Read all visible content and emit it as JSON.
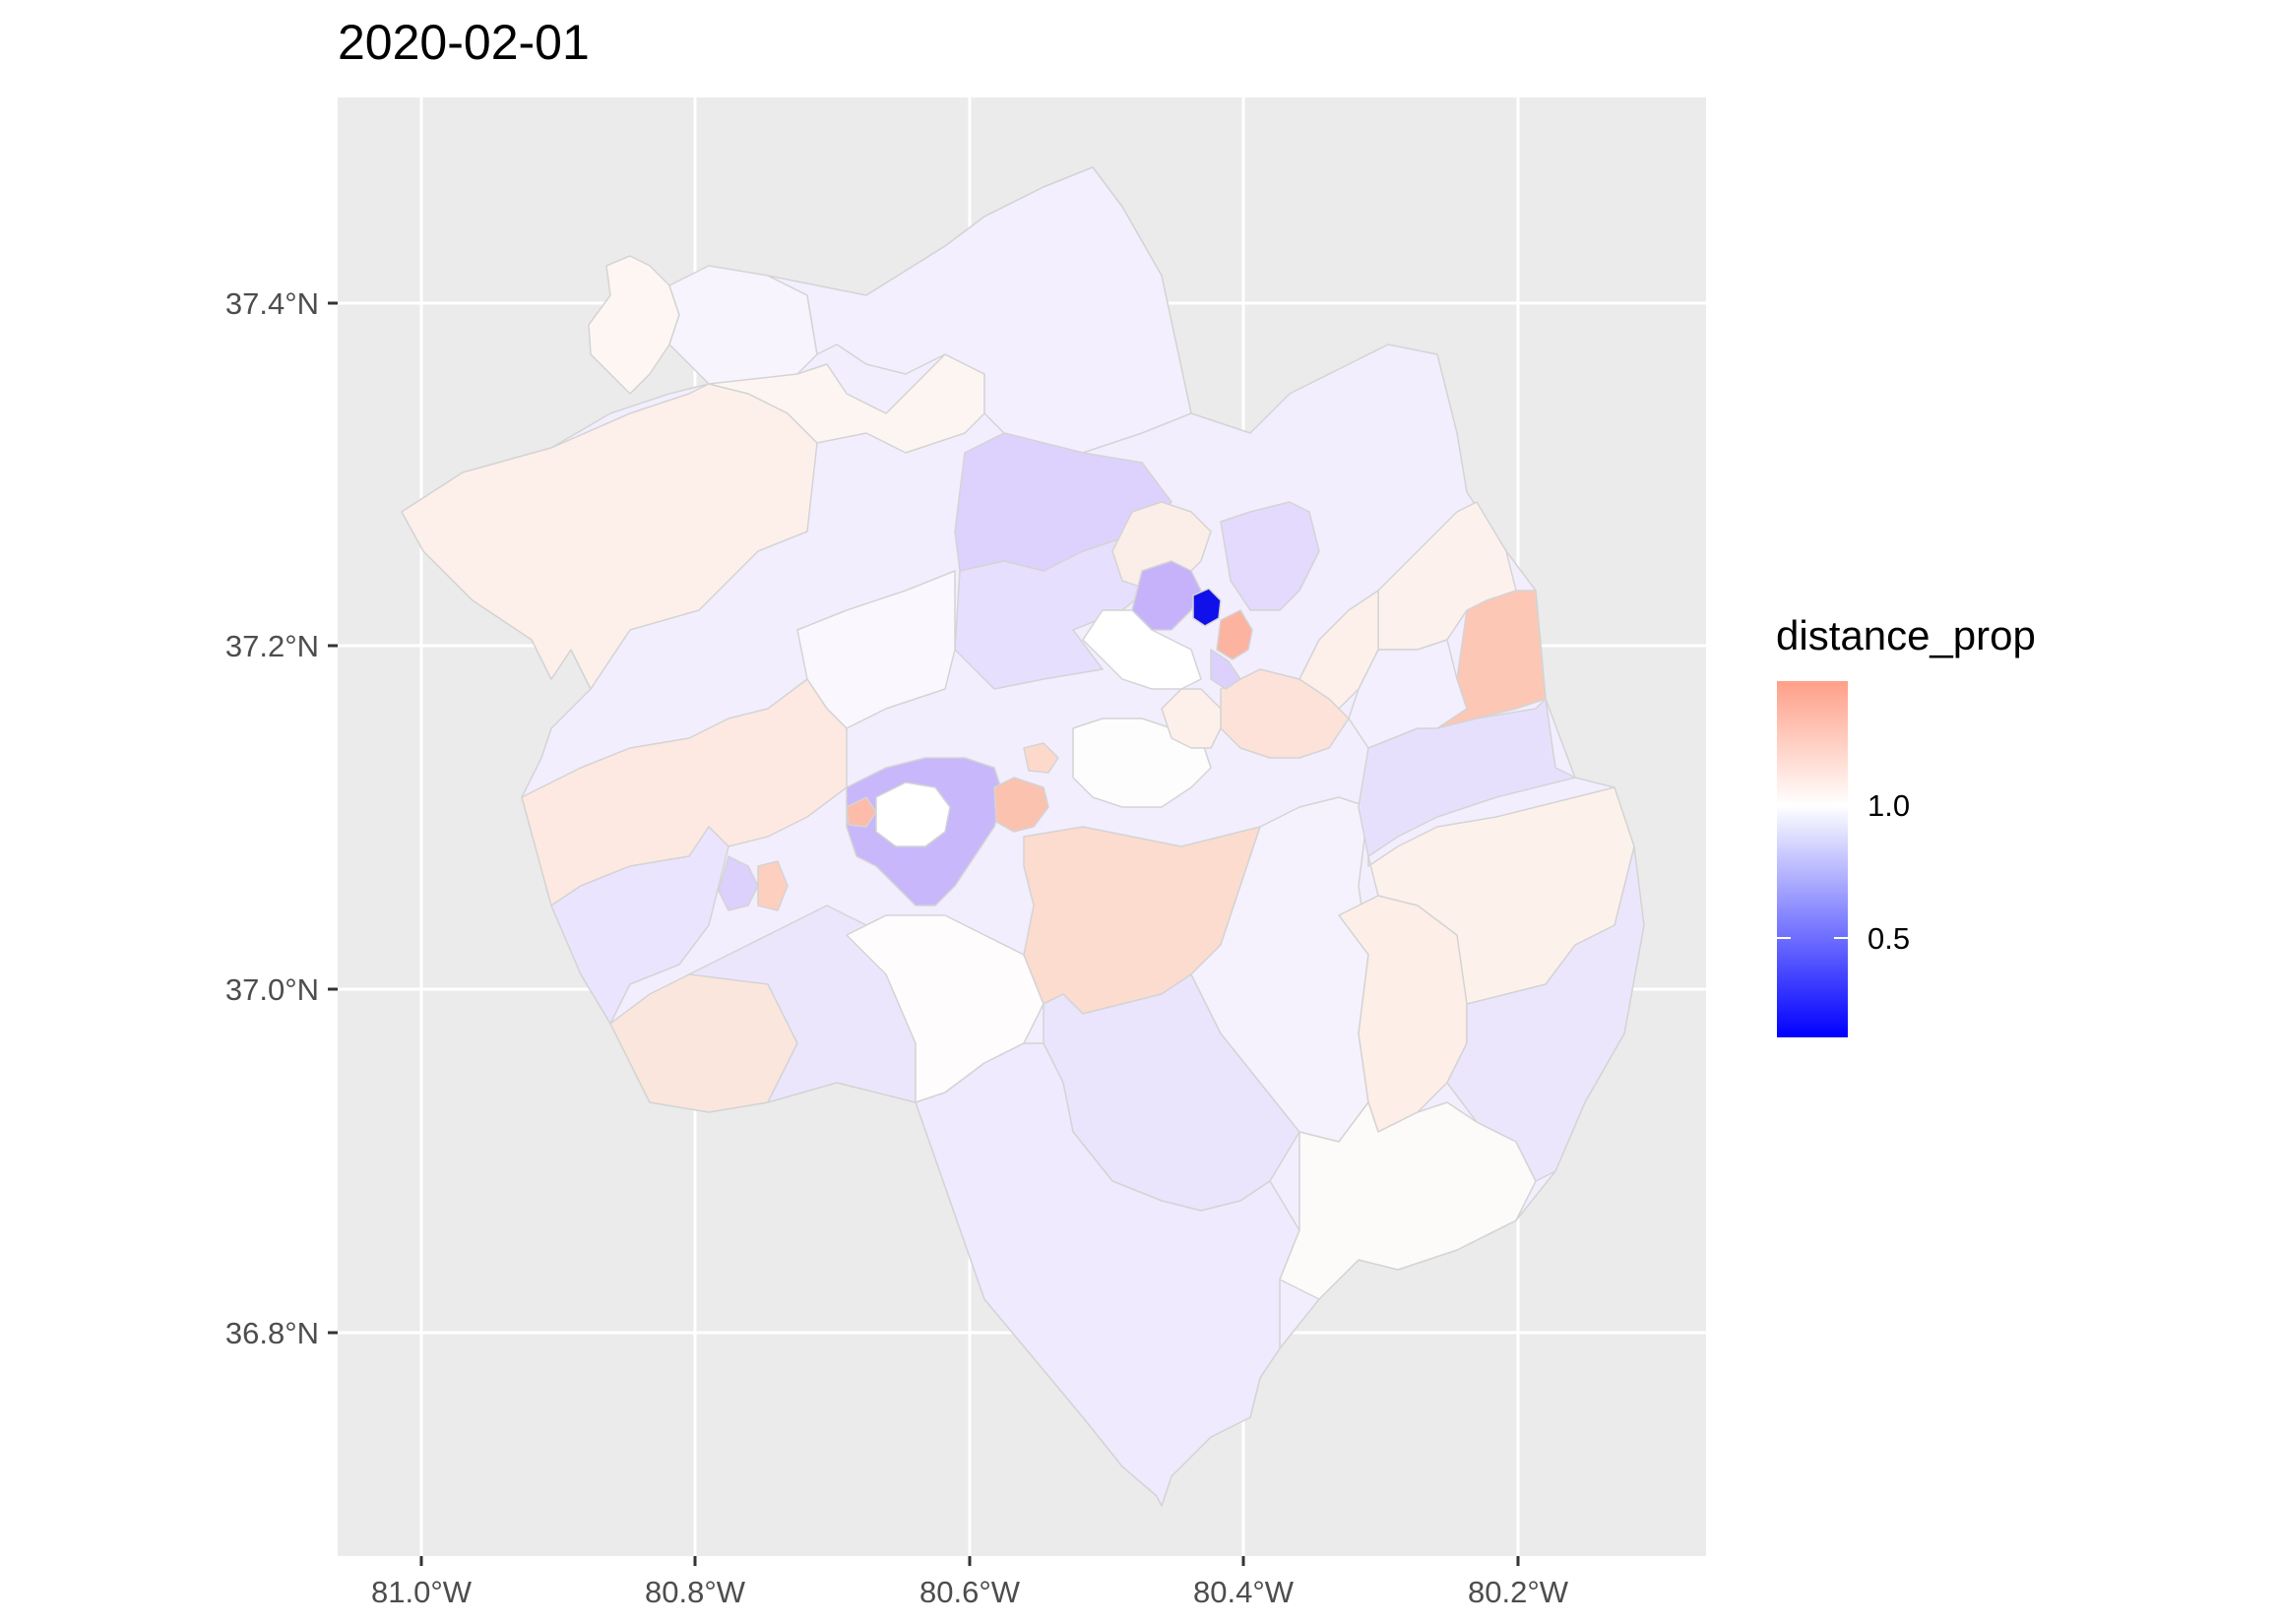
{
  "title": "2020-02-01",
  "axes": {
    "y_ticks": [
      "37.4°N",
      "37.2°N",
      "37.0°N",
      "36.8°N"
    ],
    "x_ticks": [
      "81.0°W",
      "80.8°W",
      "80.6°W",
      "80.4°W",
      "80.2°W"
    ]
  },
  "legend": {
    "title": "distance_prop",
    "labels": [
      "1.0",
      "0.5"
    ],
    "colors": {
      "high": "#ff9f88",
      "mid": "#ffffff",
      "low": "#0000ff"
    }
  },
  "colors": {
    "panel": "#ebebeb",
    "grid": "#ffffff",
    "border": "#d4d4d4",
    "fills": {
      "peach": "#fdeee8",
      "salmon": "#fcd9cc",
      "coral": "#fdb2a0",
      "lavender": "#ece6fd",
      "lilac": "#dcd0fd",
      "violet": "#c4b2fb",
      "blue": "#1212ee",
      "offwhite": "#faf8fe"
    }
  },
  "map": {
    "region": "census tracts",
    "variable": "distance_prop",
    "highlights": [
      "deep blue tract near 80.42°W 37.22°N",
      "coral tracts near 80.15°W 37.17°N"
    ]
  }
}
